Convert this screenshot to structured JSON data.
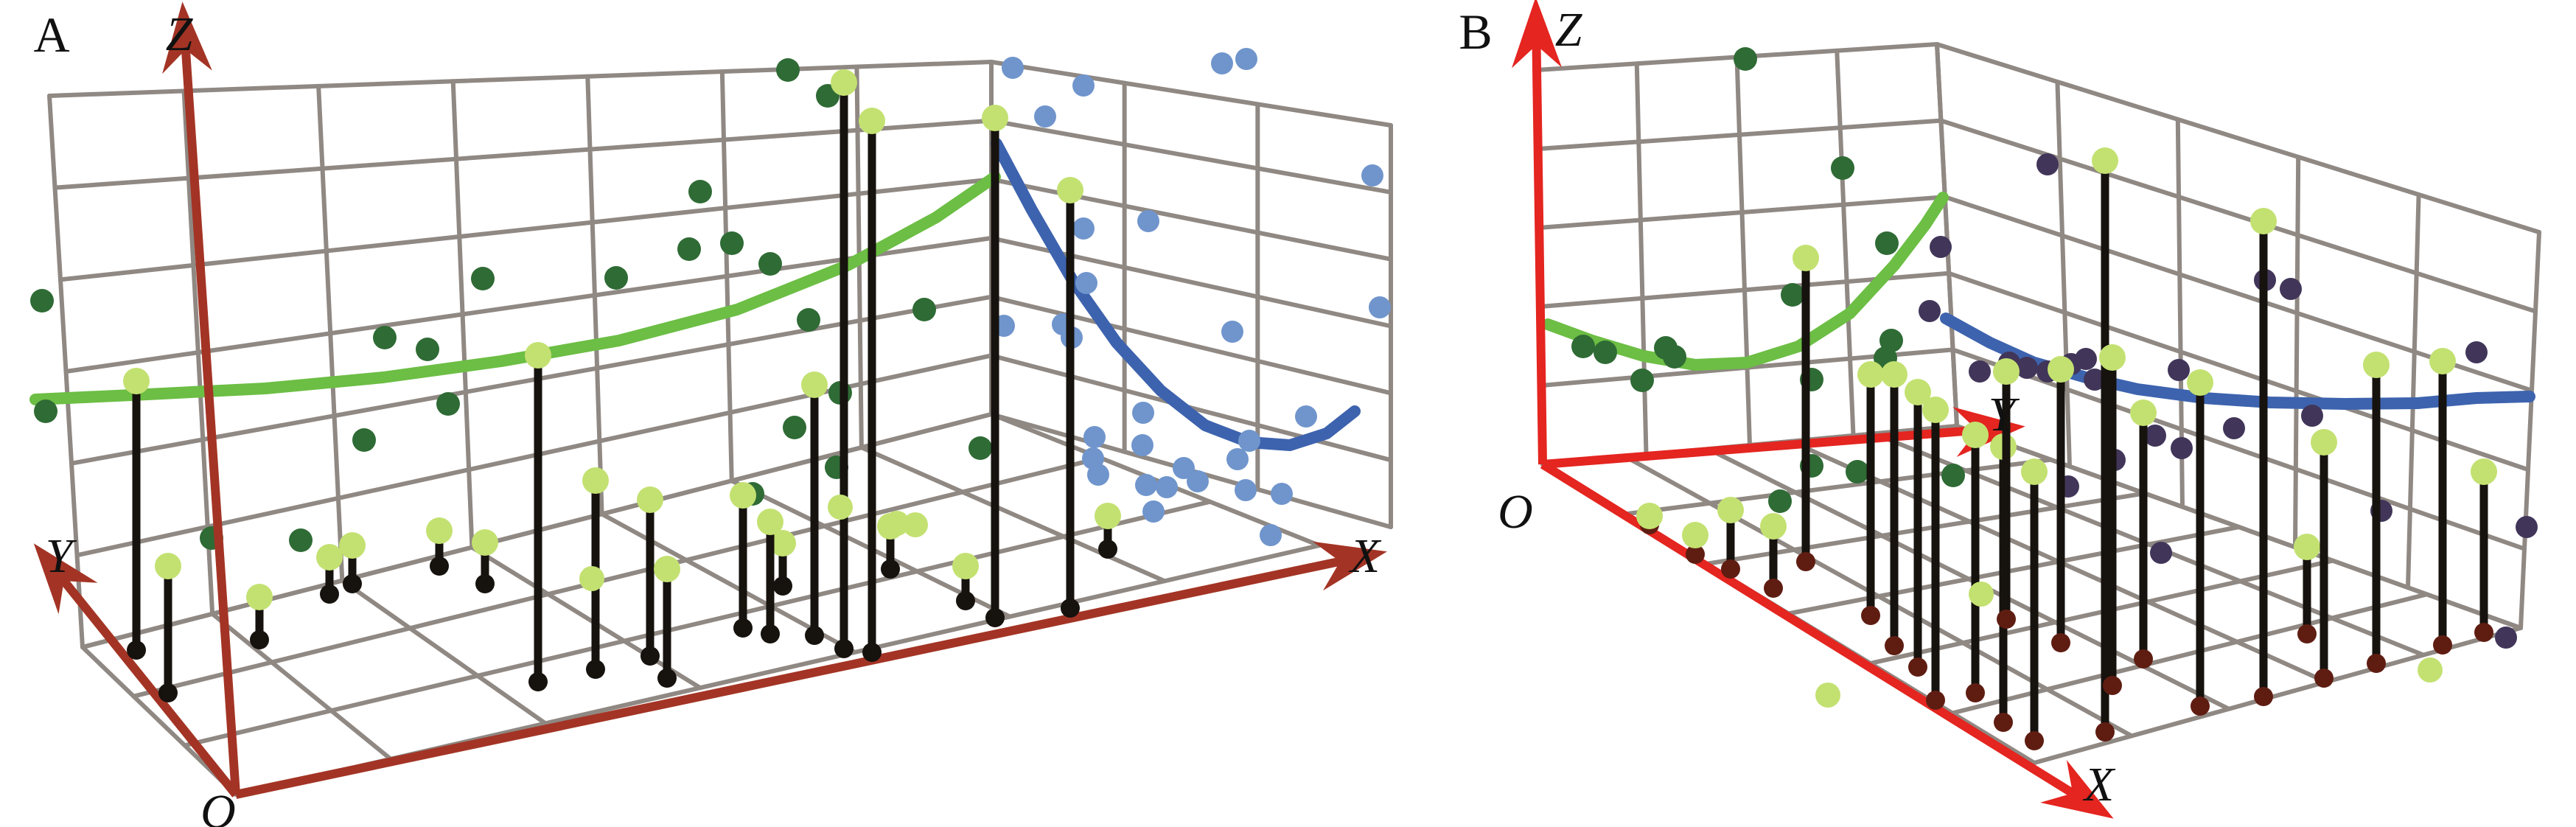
{
  "page": {
    "background": "#FFFFFF"
  },
  "chart_data": {
    "type": "scatter",
    "subtype": "3d-scatter-with-wall-projections-and-fitted-curves",
    "coordinate_space": "screenshot pixels, 3495x1122; no numeric ticks are shown in the figure",
    "grid_color": "#8F8883",
    "stem_color": "#16120E",
    "colors": {
      "panel_a_axis": "#A33425",
      "panel_b_axis": "#E42520",
      "green_curve": "#6CBE44",
      "dark_green_point": "#2F6B35",
      "light_green_point": "#C3E171",
      "blue_curve": "#3D63AE",
      "blue_point": "#7095CC",
      "purple_point": "#413659",
      "maroon_point": "#5F1D12"
    },
    "panels": [
      {
        "id": "panel-a",
        "label": "A",
        "label_pos": [
          70,
          46
        ],
        "axis_color": "#A33425",
        "origin_label": "O",
        "origin_pos": [
          296,
          1101
        ],
        "axes": {
          "z": {
            "from": [
              320,
              1078
            ],
            "to": [
              254,
              98
            ],
            "label": "Z",
            "label_pos": [
              243,
              44
            ]
          },
          "y": {
            "from": [
              320,
              1078
            ],
            "to": [
              106,
              812
            ],
            "label": "Y",
            "label_pos": [
              80,
              752
            ]
          },
          "x": {
            "from": [
              320,
              1078
            ],
            "to": [
              1788,
              768
            ],
            "label": "X",
            "label_pos": [
              1852,
              752
            ]
          }
        },
        "walls": {
          "back": {
            "tl": [
              67,
              130
            ],
            "tr": [
              1345,
              84
            ],
            "br": [
              1345,
              562
            ],
            "bl": [
              112,
              878
            ],
            "nx": 7,
            "ny": 6
          },
          "right": {
            "tl": [
              1345,
              84
            ],
            "tr": [
              1887,
              170
            ],
            "br": [
              1887,
              715
            ],
            "bl": [
              1345,
              562
            ],
            "nx": 3,
            "ny": 6
          },
          "floor": {
            "tl": [
              112,
              878
            ],
            "tr": [
              1345,
              562
            ],
            "br": [
              1790,
              740
            ],
            "bl": [
              320,
              1078
            ],
            "nx": 7,
            "ny": 3
          }
        },
        "green_curve": [
          [
            48,
            542
          ],
          [
            200,
            535
          ],
          [
            360,
            527
          ],
          [
            520,
            512
          ],
          [
            680,
            490
          ],
          [
            840,
            462
          ],
          [
            1000,
            420
          ],
          [
            1150,
            360
          ],
          [
            1270,
            295
          ],
          [
            1350,
            240
          ]
        ],
        "blue_curve": [
          [
            1352,
            195
          ],
          [
            1400,
            285
          ],
          [
            1455,
            380
          ],
          [
            1515,
            465
          ],
          [
            1575,
            530
          ],
          [
            1635,
            577
          ],
          [
            1695,
            600
          ],
          [
            1750,
            604
          ],
          [
            1800,
            588
          ],
          [
            1838,
            558
          ]
        ],
        "dark_green_points": [
          [
            57,
            408
          ],
          [
            62,
            558
          ],
          [
            287,
            730
          ],
          [
            408,
            733
          ],
          [
            522,
            458
          ],
          [
            580,
            474
          ],
          [
            608,
            548
          ],
          [
            494,
            597
          ],
          [
            655,
            378
          ],
          [
            836,
            377
          ],
          [
            935,
            338
          ],
          [
            950,
            260
          ],
          [
            993,
            330
          ],
          [
            1045,
            358
          ],
          [
            1097,
            434
          ],
          [
            1254,
            420
          ],
          [
            1140,
            533
          ],
          [
            1078,
            580
          ],
          [
            1330,
            608
          ],
          [
            1135,
            634
          ],
          [
            1021,
            670
          ],
          [
            1069,
            95
          ],
          [
            1123,
            130
          ]
        ],
        "blue_points": [
          [
            1374,
            92
          ],
          [
            1470,
            116
          ],
          [
            1418,
            158
          ],
          [
            1691,
            80
          ],
          [
            1658,
            86
          ],
          [
            1470,
            310
          ],
          [
            1474,
            384
          ],
          [
            1442,
            440
          ],
          [
            1362,
            442
          ],
          [
            1454,
            458
          ],
          [
            1558,
            300
          ],
          [
            1672,
            450
          ],
          [
            1485,
            593
          ],
          [
            1483,
            622
          ],
          [
            1490,
            644
          ],
          [
            1551,
            560
          ],
          [
            1550,
            604
          ],
          [
            1555,
            658
          ],
          [
            1583,
            661
          ],
          [
            1565,
            694
          ],
          [
            1679,
            623
          ],
          [
            1695,
            598
          ],
          [
            1772,
            565
          ],
          [
            1862,
            238
          ],
          [
            1872,
            417
          ],
          [
            1606,
            635
          ],
          [
            1625,
            653
          ],
          [
            1690,
            665
          ],
          [
            1739,
            670
          ],
          [
            1724,
            726
          ]
        ],
        "light_green_free": [
          [
            803,
            785
          ],
          [
            1217,
            710
          ],
          [
            1242,
            712
          ],
          [
            1140,
            688
          ]
        ],
        "stems": [
          [
            185,
            517,
            882
          ],
          [
            228,
            768,
            940
          ],
          [
            352,
            810,
            868
          ],
          [
            447,
            756,
            806
          ],
          [
            478,
            740,
            792
          ],
          [
            596,
            720,
            768
          ],
          [
            658,
            736,
            792
          ],
          [
            730,
            482,
            925
          ],
          [
            808,
            652,
            908
          ],
          [
            882,
            678,
            890
          ],
          [
            1008,
            672,
            852
          ],
          [
            1062,
            737,
            795
          ],
          [
            1105,
            522,
            862
          ],
          [
            1145,
            112,
            880
          ],
          [
            1183,
            164,
            885
          ],
          [
            1208,
            714,
            772
          ],
          [
            1350,
            160,
            838
          ],
          [
            1452,
            258,
            825
          ],
          [
            1503,
            700,
            745
          ],
          [
            1310,
            768,
            815
          ],
          [
            905,
            772,
            920
          ],
          [
            1045,
            708,
            860
          ]
        ],
        "stem_bottom_color": "#16120E"
      },
      {
        "id": "panel-b",
        "label": "B",
        "label_pos": [
          2002,
          42
        ],
        "axis_color": "#E42520",
        "origin_label": "O",
        "origin_pos": [
          2056,
          694
        ],
        "axes": {
          "z": {
            "from": [
              2093,
              630
            ],
            "to": [
              2085,
              92
            ],
            "label": "Z",
            "label_pos": [
              2128,
              38
            ]
          },
          "y": {
            "from": [
              2093,
              630
            ],
            "to": [
              2652,
              586
            ],
            "label": "Y",
            "label_pos": [
              2716,
              560
            ]
          },
          "x": {
            "from": [
              2093,
              630
            ],
            "to": [
              2786,
              1060
            ],
            "label": "X",
            "label_pos": [
              2848,
              1062
            ]
          }
        },
        "walls": {
          "back": {
            "tl": [
              2085,
              95
            ],
            "tr": [
              2628,
              60
            ],
            "br": [
              2655,
              578
            ],
            "bl": [
              2093,
              630
            ],
            "nx": 4,
            "ny": 5
          },
          "right": {
            "tl": [
              2628,
              60
            ],
            "tr": [
              3445,
              315
            ],
            "br": [
              3420,
              852
            ],
            "bl": [
              2655,
              578
            ],
            "nx": 5,
            "ny": 5
          },
          "floor": {
            "tl": [
              2655,
              578
            ],
            "tr": [
              3420,
              852
            ],
            "br": [
              2760,
              1035
            ],
            "bl": [
              2093,
              630
            ],
            "nx": 6,
            "ny": 5
          }
        },
        "green_curve": [
          [
            2100,
            440
          ],
          [
            2160,
            462
          ],
          [
            2230,
            483
          ],
          [
            2300,
            495
          ],
          [
            2370,
            492
          ],
          [
            2440,
            470
          ],
          [
            2510,
            425
          ],
          [
            2570,
            360
          ],
          [
            2612,
            305
          ],
          [
            2636,
            268
          ]
        ],
        "blue_curve": [
          [
            2640,
            432
          ],
          [
            2700,
            465
          ],
          [
            2760,
            492
          ],
          [
            2830,
            512
          ],
          [
            2900,
            528
          ],
          [
            2990,
            540
          ],
          [
            3080,
            546
          ],
          [
            3180,
            548
          ],
          [
            3280,
            547
          ],
          [
            3360,
            540
          ],
          [
            3432,
            538
          ]
        ],
        "dark_green_points": [
          [
            2368,
            80
          ],
          [
            2500,
            228
          ],
          [
            2148,
            470
          ],
          [
            2178,
            478
          ],
          [
            2260,
            472
          ],
          [
            2272,
            484
          ],
          [
            2228,
            516
          ],
          [
            2432,
            400
          ],
          [
            2458,
            515
          ],
          [
            2560,
            330
          ],
          [
            2520,
            640
          ],
          [
            2458,
            632
          ],
          [
            2415,
            680
          ],
          [
            2650,
            645
          ],
          [
            2566,
            462
          ],
          [
            2558,
            486
          ]
        ],
        "purple_points": [
          [
            2778,
            223
          ],
          [
            2633,
            335
          ],
          [
            2618,
            422
          ],
          [
            2726,
            492
          ],
          [
            2778,
            504
          ],
          [
            2830,
            487
          ],
          [
            2750,
            499
          ],
          [
            2686,
            504
          ],
          [
            2810,
            494
          ],
          [
            2842,
            515
          ],
          [
            2806,
            660
          ],
          [
            3073,
            380
          ],
          [
            3108,
            392
          ],
          [
            2956,
            502
          ],
          [
            2924,
            591
          ],
          [
            2960,
            608
          ],
          [
            3031,
            581
          ],
          [
            3137,
            564
          ],
          [
            3360,
            478
          ],
          [
            2869,
            624
          ],
          [
            3231,
            693
          ],
          [
            3428,
            715
          ],
          [
            2932,
            750
          ],
          [
            3400,
            865
          ]
        ],
        "light_green_free": [
          [
            2688,
            806
          ],
          [
            2480,
            943
          ],
          [
            3297,
            909
          ]
        ],
        "stems": [
          [
            2238,
            700,
            712
          ],
          [
            2300,
            726,
            752
          ],
          [
            2348,
            692,
            772
          ],
          [
            2406,
            714,
            798
          ],
          [
            2450,
            350,
            762
          ],
          [
            2538,
            508,
            835
          ],
          [
            2570,
            508,
            876
          ],
          [
            2602,
            532,
            905
          ],
          [
            2626,
            556,
            950
          ],
          [
            2680,
            590,
            940
          ],
          [
            2718,
            606,
            980
          ],
          [
            2722,
            504,
            840
          ],
          [
            2760,
            640,
            1005
          ],
          [
            2796,
            501,
            872
          ],
          [
            2856,
            218,
            993
          ],
          [
            2866,
            485,
            930
          ],
          [
            2908,
            560,
            894
          ],
          [
            2985,
            519,
            958
          ],
          [
            3071,
            300,
            945
          ],
          [
            3130,
            742,
            860
          ],
          [
            3153,
            600,
            920
          ],
          [
            3224,
            495,
            900
          ],
          [
            3314,
            490,
            875
          ],
          [
            3370,
            640,
            858
          ]
        ],
        "stem_bottom_color": "#5F1D12"
      }
    ]
  }
}
